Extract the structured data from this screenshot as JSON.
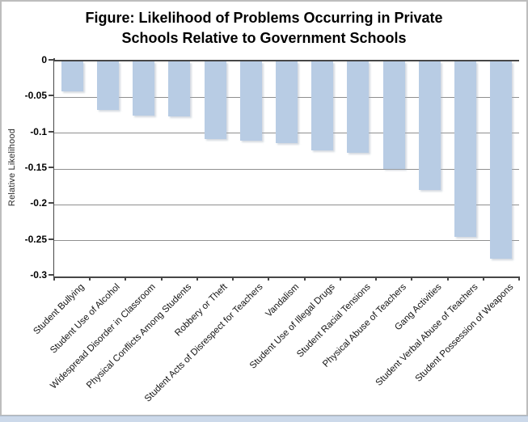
{
  "window": {
    "edge_strip_color": "#ccd9ea",
    "frame_border_color": "#bdbdbd"
  },
  "chart_data": {
    "type": "bar",
    "title": "Figure: Likelihood of Problems Occurring in Private Schools Relative to Government Schools",
    "xlabel": "",
    "ylabel": "Relative Likelihood",
    "ylim": [
      -0.3,
      0
    ],
    "ytick_labels": [
      "0",
      "-0.05",
      "-0.1",
      "-0.15",
      "-0.2",
      "-0.25",
      "-0.3"
    ],
    "yticks": [
      0,
      -0.05,
      -0.1,
      -0.15,
      -0.2,
      -0.25,
      -0.3
    ],
    "grid": true,
    "legend": false,
    "bar_color": "#b8cce4",
    "gridline_color": "#8f8f8f",
    "axis_color": "#474747",
    "categories": [
      "Student Bullying",
      "Student Use of Alcohol",
      "Widespread Disorder in Classroom",
      "Physical Conflicts Among Students",
      "Robbery or Theft",
      "Student Acts of Disrespect for Teachers",
      "Vandalism",
      "Student Use of Illegal Drugs",
      "Student Racial Tensions",
      "Physical Abuse of Teachers",
      "Gang Activities",
      "Student Verbal Abuse of Teachers",
      "Student Possession of Weapons"
    ],
    "values": [
      -0.042,
      -0.068,
      -0.076,
      -0.077,
      -0.108,
      -0.111,
      -0.114,
      -0.124,
      -0.127,
      -0.15,
      -0.179,
      -0.245,
      -0.275
    ]
  }
}
